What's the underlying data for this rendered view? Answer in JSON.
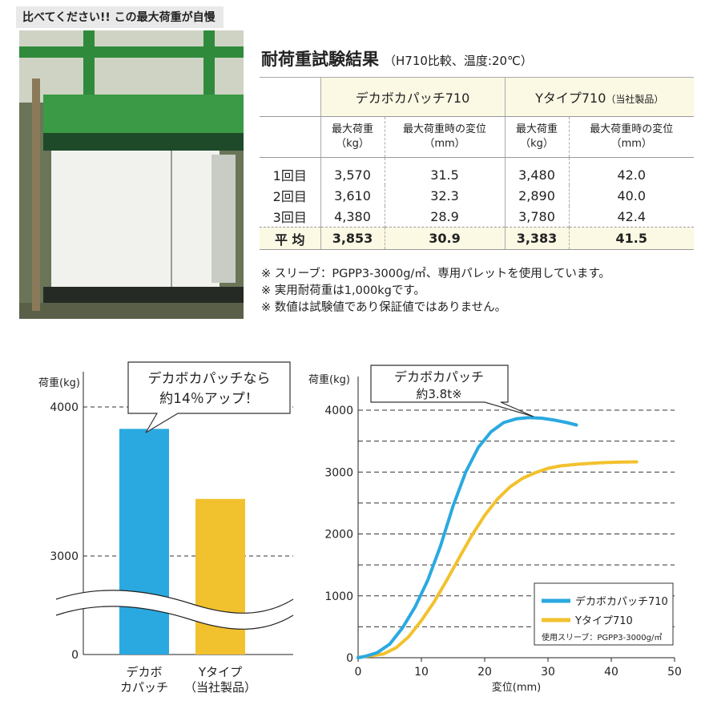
{
  "header": {
    "banner": "比べてください!! この最大荷重が自慢"
  },
  "section": {
    "title": "耐荷重試験結果",
    "subtitle": "（H710比較、温度:20℃）"
  },
  "table": {
    "col_groups": [
      {
        "name": "デカボカパッチ710",
        "suffix": ""
      },
      {
        "name": "Yタイプ710",
        "suffix": "（当社製品）"
      }
    ],
    "subheaders": [
      [
        "最大荷重",
        "（kg）"
      ],
      [
        "最大荷重時の変位",
        "（mm）"
      ],
      [
        "最大荷重",
        "（kg）"
      ],
      [
        "最大荷重時の変位",
        "（mm）"
      ]
    ],
    "rows": [
      {
        "label": "1回目",
        "cells": [
          "3,570",
          "31.5",
          "3,480",
          "42.0"
        ]
      },
      {
        "label": "2回目",
        "cells": [
          "3,610",
          "32.3",
          "2,890",
          "40.0"
        ]
      },
      {
        "label": "3回目",
        "cells": [
          "4,380",
          "28.9",
          "3,780",
          "42.4"
        ]
      }
    ],
    "average": {
      "label": "平 均",
      "cells": [
        "3,853",
        "30.9",
        "3,383",
        "41.5"
      ]
    }
  },
  "notes": [
    "※ スリーブ：PGPP3-3000g/㎡、専用パレットを使用しています。",
    "※ 実用耐荷重は1,000kgです。",
    "※ 数値は試験値であり保証値ではありません。"
  ],
  "colors": {
    "blue": "#2aa9e0",
    "yellow": "#f2c12e",
    "banner_bg": "#e9e9e9",
    "table_header_bg": "#fbf8e4"
  },
  "chart_data": [
    {
      "type": "bar",
      "ylabel": "荷重(kg)",
      "yticks": [
        0,
        3000,
        4000
      ],
      "axis_break": true,
      "categories": [
        [
          "デカボ",
          "カパッチ"
        ],
        [
          "Yタイプ",
          "（当社製品）"
        ]
      ],
      "values": [
        3853,
        3383
      ],
      "colors": [
        "#2aa9e0",
        "#f2c12e"
      ],
      "callout": [
        "デカボカパッチなら",
        "約14％アップ！"
      ],
      "grid": "dashed"
    },
    {
      "type": "line",
      "ylabel": "荷重(kg)",
      "xlabel": "変位(mm)",
      "xlim": [
        0,
        50
      ],
      "ylim": [
        0,
        4000
      ],
      "xticks": [
        0,
        10,
        20,
        30,
        40,
        50
      ],
      "yticks": [
        0,
        1000,
        2000,
        3000,
        4000
      ],
      "grid": "dashed",
      "series": [
        {
          "name": "デカボカパッチ710",
          "color": "#2aa9e0",
          "points": [
            [
              1,
              20
            ],
            [
              3,
              80
            ],
            [
              5,
              220
            ],
            [
              7,
              480
            ],
            [
              9,
              820
            ],
            [
              11,
              1250
            ],
            [
              13,
              1800
            ],
            [
              15,
              2450
            ],
            [
              17,
              3000
            ],
            [
              19,
              3400
            ],
            [
              21,
              3650
            ],
            [
              23,
              3800
            ],
            [
              25,
              3860
            ],
            [
              27,
              3880
            ],
            [
              29,
              3870
            ],
            [
              31,
              3840
            ],
            [
              33,
              3800
            ],
            [
              34.5,
              3760
            ]
          ]
        },
        {
          "name": "Yタイプ710",
          "color": "#f2c12e",
          "points": [
            [
              1,
              20
            ],
            [
              4,
              60
            ],
            [
              6,
              160
            ],
            [
              8,
              340
            ],
            [
              10,
              600
            ],
            [
              12,
              900
            ],
            [
              14,
              1250
            ],
            [
              16,
              1620
            ],
            [
              18,
              1980
            ],
            [
              20,
              2300
            ],
            [
              22,
              2560
            ],
            [
              24,
              2760
            ],
            [
              26,
              2900
            ],
            [
              28,
              2990
            ],
            [
              30,
              3060
            ],
            [
              32,
              3100
            ],
            [
              35,
              3130
            ],
            [
              38,
              3150
            ],
            [
              41,
              3160
            ],
            [
              44,
              3165
            ]
          ]
        }
      ],
      "legend_position": "bottom-right",
      "legend_note": "使用スリーブ：PGPP3-3000g/㎡",
      "callout": [
        "デカボカパッチ",
        "約3.8t※"
      ]
    }
  ]
}
